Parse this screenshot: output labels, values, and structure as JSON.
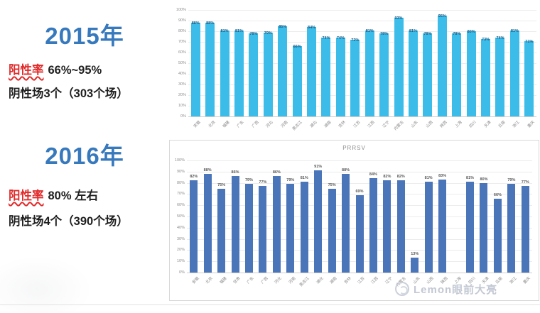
{
  "left_panel": {
    "sections": [
      {
        "year": "2015年",
        "positive_label": "阳性率",
        "positive_value": "66%~95%",
        "negative_line": "阴性场3个（303个场）"
      },
      {
        "year": "2016年",
        "positive_label": "阳性率",
        "positive_value": "80% 左右",
        "negative_line": "阴性场4个（390个场）"
      }
    ],
    "accent_blue": "#3779bd",
    "accent_red": "#e02b2b"
  },
  "watermark": {
    "text": "Lemon眼前大亮",
    "icon": "lemon-logo"
  },
  "chart_data": [
    {
      "type": "bar",
      "title": "",
      "categories": [
        "安徽",
        "北京",
        "福建",
        "广东",
        "广西",
        "河北",
        "河南",
        "黑龙江",
        "湖北",
        "湖南",
        "吉林",
        "江苏",
        "江西",
        "辽宁",
        "内蒙古",
        "山东",
        "山西",
        "陕西",
        "上海",
        "四川",
        "天津",
        "云南",
        "浙江",
        "重庆"
      ],
      "values": [
        88,
        88,
        81,
        81,
        78,
        79,
        85,
        66,
        84,
        74,
        74,
        72,
        81,
        78,
        93,
        81,
        78,
        95,
        78,
        80,
        73,
        74,
        81,
        71
      ],
      "unit": "%",
      "xlabel": "",
      "ylabel": "",
      "ylim": [
        0,
        100
      ],
      "ytick_step": 10,
      "grid": true,
      "legend": "none",
      "bar_color": "#3cbde9",
      "data_label_color": "#155a85",
      "data_labels": true
    },
    {
      "type": "bar",
      "title": "PRRSV",
      "categories": [
        "安徽",
        "北京",
        "福建",
        "甘肃",
        "广东",
        "广西",
        "河北",
        "河南",
        "黑龙江",
        "湖北",
        "湖南",
        "吉林",
        "江苏",
        "江西",
        "辽宁",
        "内蒙古",
        "山东",
        "山西",
        "陕西",
        "上海",
        "四川",
        "天津",
        "云南",
        "浙江",
        "重庆"
      ],
      "values": [
        82,
        88,
        75,
        86,
        79,
        77,
        86,
        79,
        81,
        91,
        75,
        88,
        69,
        84,
        82,
        82,
        13,
        81,
        83,
        null,
        81,
        80,
        66,
        79,
        77
      ],
      "unit": "%",
      "xlabel": "",
      "ylabel": "",
      "ylim": [
        0,
        100
      ],
      "ytick_step": 10,
      "grid": true,
      "legend": "none",
      "bar_color": "#4a75b8",
      "data_label_color": "#595959",
      "data_labels": true
    }
  ]
}
